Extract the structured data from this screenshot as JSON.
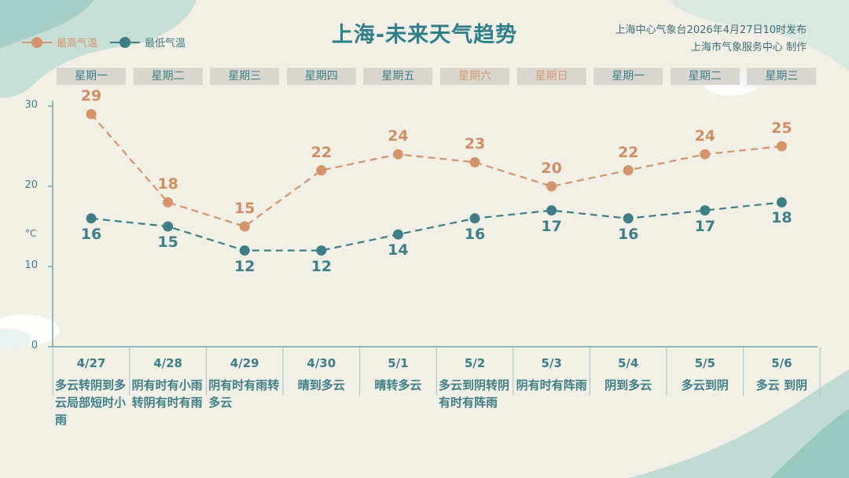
{
  "title": "上海-未来天气趋势",
  "issuer": {
    "line1": "上海中心气象台2026年4月27日10时发布",
    "line2": "上海市气象服务中心  制作"
  },
  "legend": {
    "high": "最高气温",
    "low": "最低气温"
  },
  "colors": {
    "high": "#d4946a",
    "low": "#3e7f87",
    "accent": "#2f7f8a"
  },
  "weekdays": [
    "星期一",
    "星期二",
    "星期三",
    "星期四",
    "星期五",
    "星期六",
    "星期日",
    "星期一",
    "星期二",
    "星期三"
  ],
  "weekend_index": [
    5,
    6
  ],
  "days": [
    {
      "date": "4/27",
      "weather": "多云转阴到多云局部短时小雨"
    },
    {
      "date": "4/28",
      "weather": "阴有时有小雨转阴有时有雨"
    },
    {
      "date": "4/29",
      "weather": "阴有时有雨转多云"
    },
    {
      "date": "4/30",
      "weather": "晴到多云"
    },
    {
      "date": "5/1",
      "weather": "晴转多云"
    },
    {
      "date": "5/2",
      "weather": "多云到阴转阴有时有阵雨"
    },
    {
      "date": "5/3",
      "weather": "阴有时有阵雨"
    },
    {
      "date": "5/4",
      "weather": "阴到多云"
    },
    {
      "date": "5/5",
      "weather": "多云到阴"
    },
    {
      "date": "5/6",
      "weather": "多云 到阴"
    }
  ],
  "chart_data": {
    "type": "line",
    "categories": [
      "4/27",
      "4/28",
      "4/29",
      "4/30",
      "5/1",
      "5/2",
      "5/3",
      "5/4",
      "5/5",
      "5/6"
    ],
    "series": [
      {
        "name": "最高气温",
        "values": [
          29,
          18,
          15,
          22,
          24,
          23,
          20,
          22,
          24,
          25
        ],
        "color": "#d4946a",
        "style": "dashed"
      },
      {
        "name": "最低气温",
        "values": [
          16,
          15,
          12,
          12,
          14,
          16,
          17,
          16,
          17,
          18
        ],
        "color": "#3e7f87",
        "style": "dashed"
      }
    ],
    "yticks": [
      0,
      10,
      20,
      30
    ],
    "ylim": [
      0,
      30
    ],
    "ylabel": "°C",
    "grid": false,
    "legend_position": "top-left"
  }
}
